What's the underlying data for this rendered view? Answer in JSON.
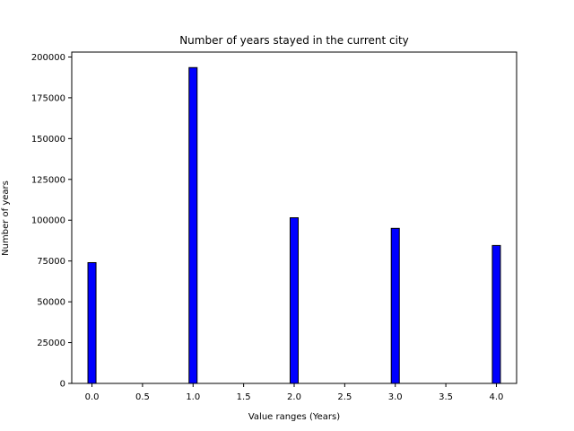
{
  "chart_data": {
    "type": "bar",
    "title": "Number of years stayed in the current city",
    "xlabel": "Value ranges (Years)",
    "ylabel": "Number of years",
    "x": [
      0,
      1,
      2,
      3,
      4
    ],
    "values": [
      74000,
      193500,
      101500,
      95000,
      84500
    ],
    "xlim": [
      -0.2,
      4.2
    ],
    "ylim": [
      0,
      203000
    ],
    "xticks": [
      0.0,
      0.5,
      1.0,
      1.5,
      2.0,
      2.5,
      3.0,
      3.5,
      4.0
    ],
    "xtick_labels": [
      "0.0",
      "0.5",
      "1.0",
      "1.5",
      "2.0",
      "2.5",
      "3.0",
      "3.5",
      "4.0"
    ],
    "yticks": [
      0,
      25000,
      50000,
      75000,
      100000,
      125000,
      150000,
      175000,
      200000
    ],
    "ytick_labels": [
      "0",
      "25000",
      "50000",
      "75000",
      "100000",
      "125000",
      "150000",
      "175000",
      "200000"
    ],
    "bar_width": 0.08,
    "grid": false,
    "bar_color": "#0000ff",
    "edge_color": "#000000"
  }
}
